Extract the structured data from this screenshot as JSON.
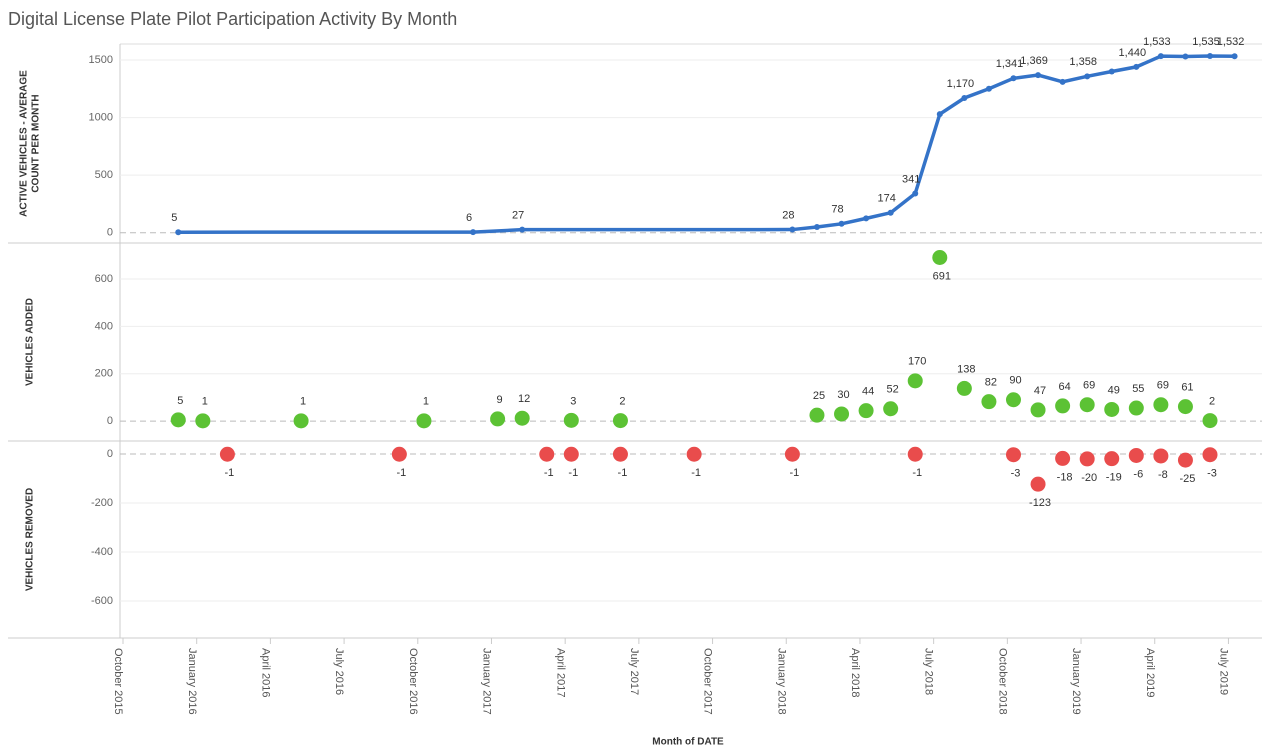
{
  "chart_data": [
    {
      "type": "line",
      "title": "Digital License Plate Pilot Participation Activity By Month",
      "ylabel": [
        "ACTIVE VEHICLES - AVERAGE",
        "COUNT PER MONTH"
      ],
      "ylim": [
        -80,
        1630
      ],
      "yticks": [
        0,
        500,
        1000,
        1500
      ],
      "series": [
        {
          "name": "Active Vehicles",
          "color": "#3473c8",
          "x": [
            "December 2015",
            "December 2016",
            "February 2017",
            "January 2018",
            "February 2018",
            "March 2018",
            "April 2018",
            "May 2018",
            "June 2018",
            "July 2018",
            "August 2018",
            "September 2018",
            "October 2018",
            "November 2018",
            "December 2018",
            "January 2019",
            "February 2019",
            "March 2019",
            "April 2019",
            "May 2019",
            "June 2019",
            "July 2019"
          ],
          "values": [
            5,
            6,
            27,
            28,
            50,
            78,
            125,
            174,
            341,
            1030,
            1170,
            1250,
            1341,
            1369,
            1310,
            1358,
            1400,
            1440,
            1533,
            1530,
            1535,
            1532
          ],
          "value_labels": [
            "5",
            "6",
            "27",
            "28",
            null,
            "78",
            null,
            "174",
            "341",
            null,
            "1,170",
            null,
            "1,341",
            "1,369",
            null,
            "1,358",
            null,
            "1,440",
            "1,533",
            null,
            "1,535",
            "1,532"
          ]
        }
      ]
    },
    {
      "type": "scatter",
      "ylabel": [
        "VEHICLES ADDED"
      ],
      "ylim": [
        -80,
        748
      ],
      "yticks": [
        0,
        200,
        400,
        600
      ],
      "series": [
        {
          "name": "Vehicles Added",
          "color": "#5cc234",
          "x": [
            "December 2015",
            "January 2016",
            "May 2016",
            "October 2016",
            "January 2017",
            "February 2017",
            "April 2017",
            "June 2017",
            "February 2018",
            "March 2018",
            "April 2018",
            "May 2018",
            "June 2018",
            "July 2018",
            "August 2018",
            "September 2018",
            "October 2018",
            "November 2018",
            "December 2018",
            "January 2019",
            "February 2019",
            "March 2019",
            "April 2019",
            "May 2019",
            "June 2019"
          ],
          "values": [
            5,
            1,
            1,
            1,
            9,
            12,
            3,
            2,
            25,
            30,
            44,
            52,
            170,
            691,
            138,
            82,
            90,
            47,
            64,
            69,
            49,
            55,
            69,
            61,
            2
          ]
        }
      ]
    },
    {
      "type": "scatter",
      "ylabel": [
        "VEHICLES REMOVED"
      ],
      "ylim": [
        -747,
        49
      ],
      "yticks": [
        0,
        -200,
        -400,
        -600
      ],
      "xlabel": "Month of DATE",
      "xlim": [
        "October 2015",
        "August 2019"
      ],
      "xticks": [
        "October 2015",
        "January 2016",
        "April 2016",
        "July 2016",
        "October 2016",
        "January 2017",
        "April 2017",
        "July 2017",
        "October 2017",
        "January 2018",
        "April 2018",
        "July 2018",
        "October 2018",
        "January 2019",
        "April 2019",
        "July 2019"
      ],
      "series": [
        {
          "name": "Vehicles Removed",
          "color": "#e94c4c",
          "x": [
            "February 2016",
            "September 2016",
            "March 2017",
            "April 2017",
            "June 2017",
            "September 2017",
            "January 2018",
            "June 2018",
            "October 2018",
            "November 2018",
            "December 2018",
            "January 2019",
            "February 2019",
            "March 2019",
            "April 2019",
            "May 2019",
            "June 2019"
          ],
          "values": [
            -1,
            -1,
            -1,
            -1,
            -1,
            -1,
            -1,
            -1,
            -3,
            -123,
            -18,
            -20,
            -19,
            -6,
            -8,
            -25,
            -3
          ]
        }
      ]
    }
  ]
}
